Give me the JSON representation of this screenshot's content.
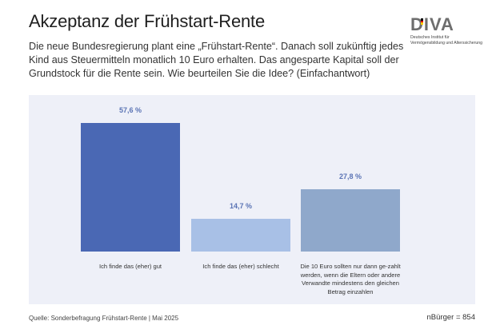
{
  "title": "Akzeptanz der Frühstart-Rente",
  "question": "Die neue Bundesregierung plant eine „Frühstart-Rente“. Danach soll zukünftig jedes Kind aus Steuermitteln monatlich 10 Euro erhalten. Das angesparte Kapital soll der Grundstock für die Rente sein. Wie beurteilen Sie die Idee? (Einfachantwort)",
  "logo": {
    "word": "DIVA",
    "line1": "Deutsches Institut für",
    "line2": "Vermögensbildung und Alterssicherung",
    "flag_colors": [
      "#000000",
      "#dd0000",
      "#ffce00"
    ]
  },
  "footer": {
    "source": "Quelle: Sonderbefragung Frühstart-Rente | Mai 2025",
    "n": "nBürger = 854"
  },
  "chart_data": {
    "type": "bar",
    "categories": [
      "Ich finde das (eher) gut",
      "Ich finde das (eher) schlecht",
      "Die 10 Euro sollten nur dann ge-zahlt werden, wenn die Eltern oder andere Verwandte mindestens den gleichen Betrag einzahlen"
    ],
    "values": [
      57.6,
      14.7,
      27.8
    ],
    "value_labels": [
      "57,6 %",
      "14,7 %",
      "27,8 %"
    ],
    "colors": [
      "#4a68b4",
      "#a8c0e6",
      "#8fa8cb"
    ],
    "ylim": [
      0,
      60
    ],
    "grid": false,
    "legend": "none"
  }
}
